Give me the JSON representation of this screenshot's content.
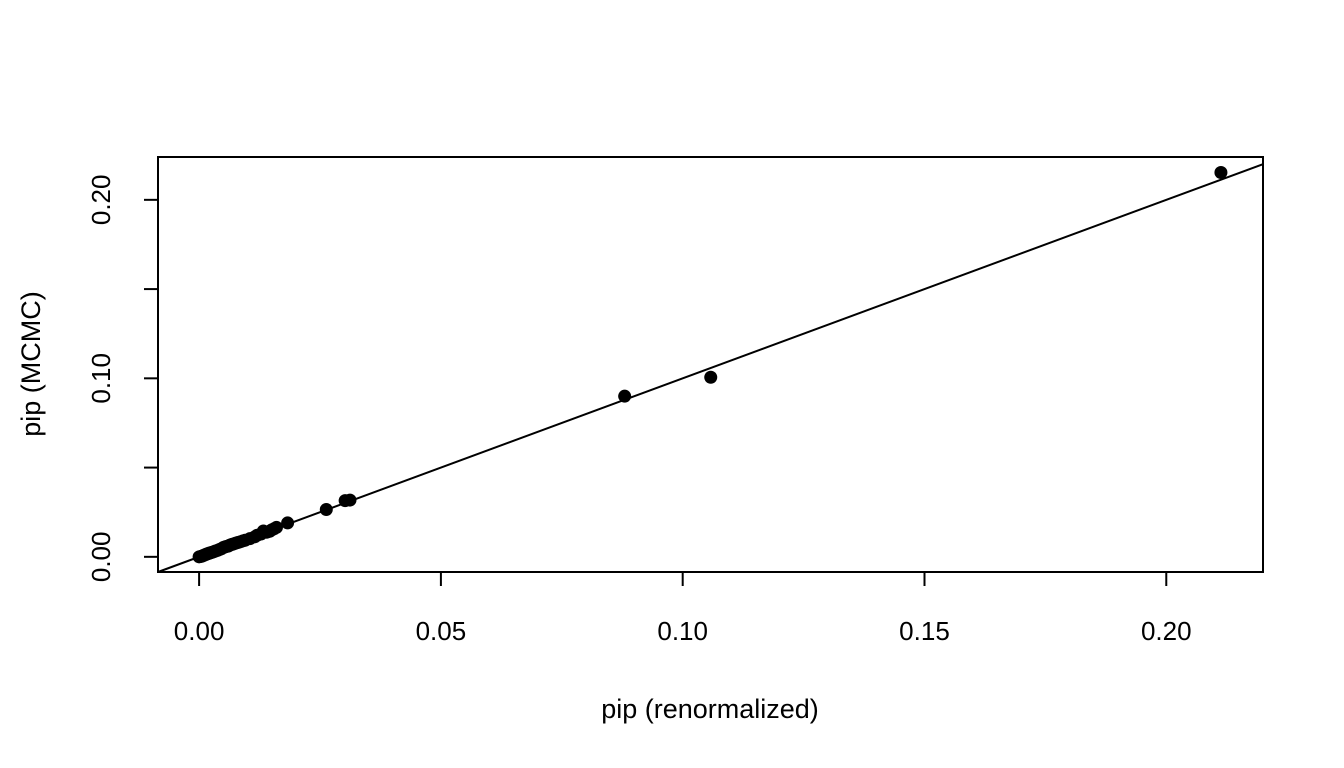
{
  "chart_data": {
    "type": "scatter",
    "xlabel": "pip (renormalized)",
    "ylabel": "pip (MCMC)",
    "xlim": [
      -0.0085,
      0.22
    ],
    "ylim": [
      -0.0085,
      0.224
    ],
    "x_ticks": [
      {
        "value": 0.0,
        "label": "0.00"
      },
      {
        "value": 0.05,
        "label": "0.05"
      },
      {
        "value": 0.1,
        "label": "0.10"
      },
      {
        "value": 0.15,
        "label": "0.15"
      },
      {
        "value": 0.2,
        "label": "0.20"
      }
    ],
    "y_ticks": [
      {
        "value": 0.0,
        "label": "0.00"
      },
      {
        "value": 0.05,
        "label": ""
      },
      {
        "value": 0.1,
        "label": "0.10"
      },
      {
        "value": 0.15,
        "label": ""
      },
      {
        "value": 0.2,
        "label": "0.20"
      }
    ],
    "reference_line": {
      "intercept": 0,
      "slope": 1
    },
    "grid": false,
    "legend": "none",
    "points": [
      {
        "x": 0.0,
        "y": 0.0
      },
      {
        "x": 0.0003,
        "y": 0.0002
      },
      {
        "x": 0.0006,
        "y": 0.0004
      },
      {
        "x": 0.0008,
        "y": 0.0007
      },
      {
        "x": 0.001,
        "y": 0.0009
      },
      {
        "x": 0.0013,
        "y": 0.0012
      },
      {
        "x": 0.0015,
        "y": 0.0015
      },
      {
        "x": 0.0018,
        "y": 0.0017
      },
      {
        "x": 0.002,
        "y": 0.002
      },
      {
        "x": 0.0023,
        "y": 0.0022
      },
      {
        "x": 0.0026,
        "y": 0.0025
      },
      {
        "x": 0.003,
        "y": 0.0028
      },
      {
        "x": 0.0033,
        "y": 0.0032
      },
      {
        "x": 0.0038,
        "y": 0.0036
      },
      {
        "x": 0.0042,
        "y": 0.0041
      },
      {
        "x": 0.0046,
        "y": 0.0045
      },
      {
        "x": 0.005,
        "y": 0.0052
      },
      {
        "x": 0.0053,
        "y": 0.0055
      },
      {
        "x": 0.0056,
        "y": 0.0058
      },
      {
        "x": 0.006,
        "y": 0.006
      },
      {
        "x": 0.0063,
        "y": 0.0065
      },
      {
        "x": 0.0067,
        "y": 0.0069
      },
      {
        "x": 0.007,
        "y": 0.0071
      },
      {
        "x": 0.0075,
        "y": 0.0076
      },
      {
        "x": 0.008,
        "y": 0.008
      },
      {
        "x": 0.0085,
        "y": 0.0084
      },
      {
        "x": 0.009,
        "y": 0.0089
      },
      {
        "x": 0.0095,
        "y": 0.0093
      },
      {
        "x": 0.0105,
        "y": 0.0102
      },
      {
        "x": 0.0115,
        "y": 0.0112
      },
      {
        "x": 0.012,
        "y": 0.0121
      },
      {
        "x": 0.0128,
        "y": 0.0128
      },
      {
        "x": 0.0133,
        "y": 0.0145
      },
      {
        "x": 0.014,
        "y": 0.0138
      },
      {
        "x": 0.0146,
        "y": 0.0143
      },
      {
        "x": 0.015,
        "y": 0.0151
      },
      {
        "x": 0.0155,
        "y": 0.0157
      },
      {
        "x": 0.016,
        "y": 0.0165
      },
      {
        "x": 0.0183,
        "y": 0.019
      },
      {
        "x": 0.0263,
        "y": 0.0265
      },
      {
        "x": 0.0302,
        "y": 0.0315
      },
      {
        "x": 0.0312,
        "y": 0.0318
      },
      {
        "x": 0.088,
        "y": 0.09
      },
      {
        "x": 0.1058,
        "y": 0.1006
      },
      {
        "x": 0.2113,
        "y": 0.2153
      }
    ]
  }
}
